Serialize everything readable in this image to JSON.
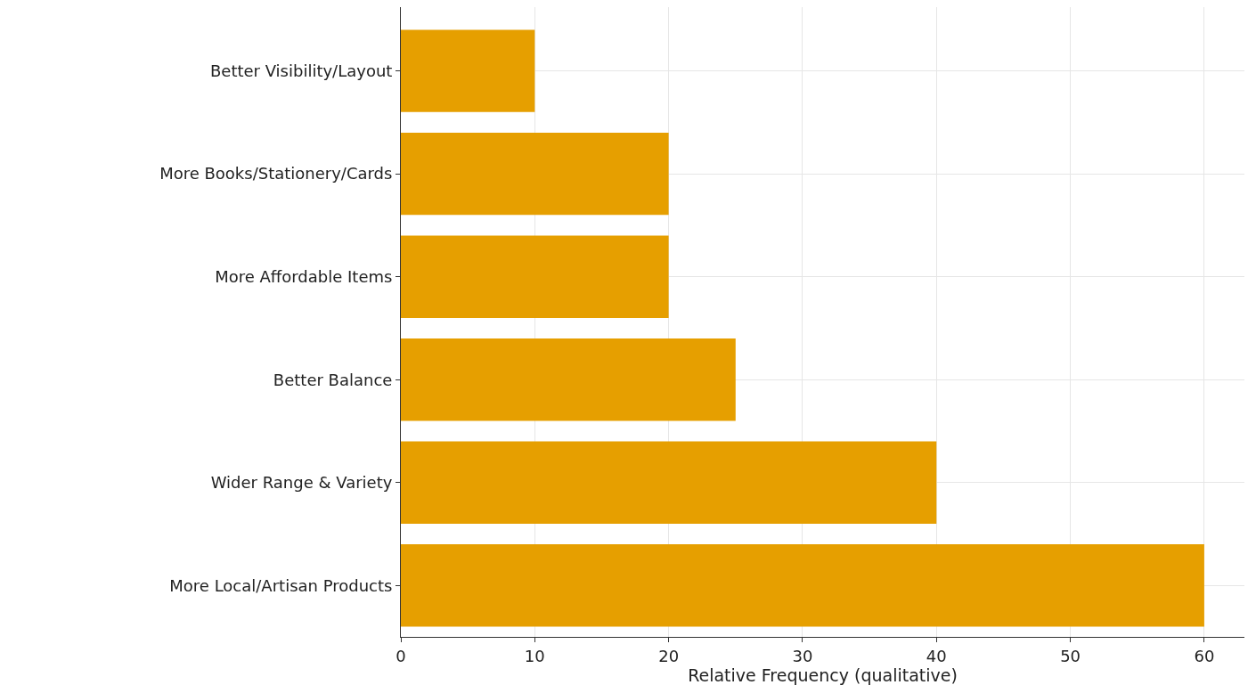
{
  "chart_data": {
    "type": "bar",
    "orientation": "horizontal",
    "xlabel": "Relative Frequency (qualitative)",
    "categories": [
      "Better Visibility/Layout",
      "More Books/Stationery/Cards",
      "More Affordable Items",
      "Better Balance",
      "Wider Range & Variety",
      "More Local/Artisan Products"
    ],
    "values": [
      10,
      20,
      20,
      25,
      40,
      60
    ],
    "color": "#e69f00",
    "xlim": [
      0,
      63
    ],
    "xticks": [
      0,
      10,
      20,
      30,
      40,
      50,
      60
    ],
    "grid": true
  }
}
